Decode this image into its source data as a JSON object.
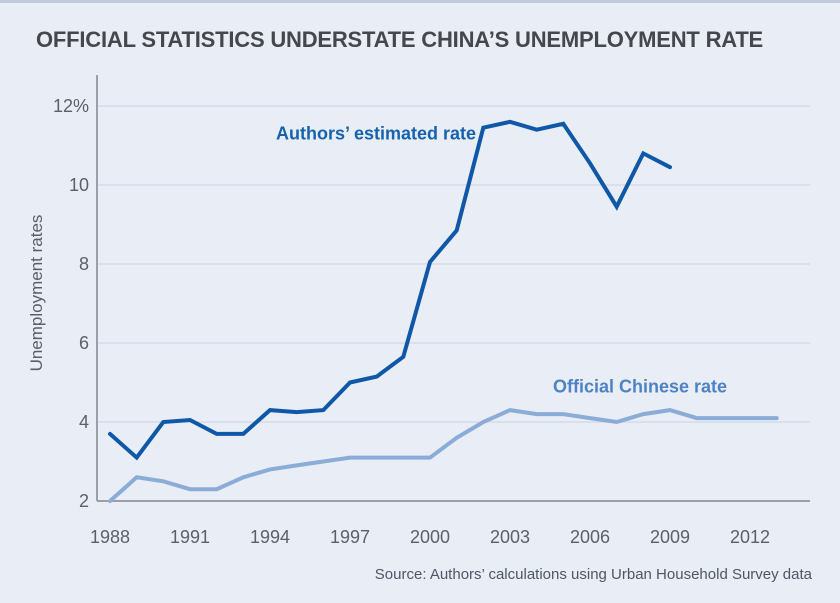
{
  "page": {
    "title": "OFFICIAL STATISTICS UNDERSTATE CHINA’S UNEMPLOYMENT RATE",
    "source_note": "Source: Authors’ calculations using Urban Household Survey data"
  },
  "chart_data": {
    "type": "line",
    "title": "OFFICIAL STATISTICS UNDERSTATE CHINA’S UNEMPLOYMENT RATE",
    "xlabel": "",
    "ylabel": "Unemployment rates",
    "ylim": [
      2,
      12
    ],
    "yticks": [
      2,
      4,
      6,
      8,
      10,
      12
    ],
    "ytick_labels": [
      "2",
      "4",
      "6",
      "8",
      "10",
      "12%"
    ],
    "xticks": [
      1988,
      1991,
      1994,
      1997,
      2000,
      2003,
      2006,
      2009,
      2012
    ],
    "xtick_labels": [
      "1988",
      "1991",
      "1994",
      "1997",
      "2000",
      "2003",
      "2006",
      "2009",
      "2012"
    ],
    "xlim": [
      1988,
      2013
    ],
    "grid": "horizontal",
    "legend_position": "inline-annotations",
    "series": [
      {
        "name": "Authors’ estimated rate",
        "color": "#0f58a8",
        "x": [
          1988,
          1989,
          1990,
          1991,
          1992,
          1993,
          1994,
          1995,
          1996,
          1997,
          1998,
          1999,
          2000,
          2001,
          2002,
          2003,
          2004,
          2005,
          2006,
          2007,
          2008,
          2009
        ],
        "values": [
          3.7,
          3.1,
          4.0,
          4.05,
          3.7,
          3.7,
          4.3,
          4.25,
          4.3,
          5.0,
          5.15,
          5.65,
          8.05,
          8.85,
          11.45,
          11.6,
          11.4,
          11.55,
          10.55,
          9.45,
          10.8,
          10.45
        ]
      },
      {
        "name": "Official Chinese rate",
        "color": "#8cacd8",
        "x": [
          1988,
          1989,
          1990,
          1991,
          1992,
          1993,
          1994,
          1995,
          1996,
          1997,
          1998,
          1999,
          2000,
          2001,
          2002,
          2003,
          2004,
          2005,
          2006,
          2007,
          2008,
          2009,
          2010,
          2011,
          2012,
          2013
        ],
        "values": [
          2.0,
          2.6,
          2.5,
          2.3,
          2.3,
          2.6,
          2.8,
          2.9,
          3.0,
          3.1,
          3.1,
          3.1,
          3.1,
          3.6,
          4.0,
          4.3,
          4.2,
          4.2,
          4.1,
          4.0,
          4.2,
          4.3,
          4.1,
          4.1,
          4.1,
          4.1
        ]
      }
    ]
  },
  "colors": {
    "background": "#e8edf6",
    "top_border": "#c3cbda",
    "title_text": "#46474d",
    "grid_line": "#d6dce7",
    "axis_line": "#9aa0aa",
    "tick_text": "#5d6066",
    "authors_line": "#0f58a8",
    "official_line": "#8cacd8",
    "authors_label": "#1562ae",
    "official_label": "#4d82c4",
    "source_text": "#4f5665"
  }
}
